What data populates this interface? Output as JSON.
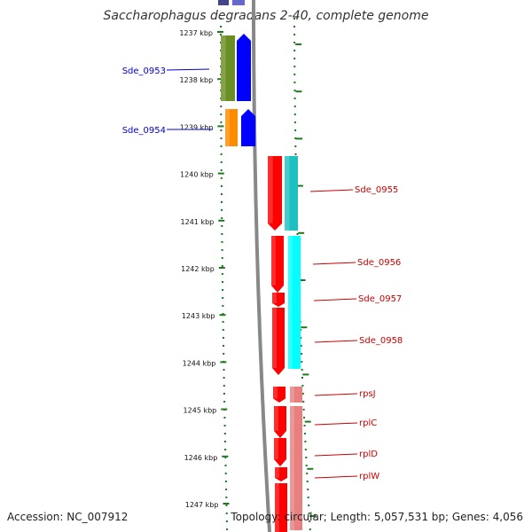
{
  "title": "Saccharophagus degradans 2-40, complete genome",
  "accession": "Accession: NC_007912",
  "topology": "Topology: circular; Length: 5,057,531 bp; Genes: 4,056",
  "ticks": [
    "1237 kbp",
    "1238 kbp",
    "1239 kbp",
    "1240 kbp",
    "1241 kbp",
    "1242 kbp",
    "1243 kbp",
    "1244 kbp",
    "1245 kbp",
    "1246 kbp",
    "1247 kbp"
  ],
  "colors": {
    "tick": "#1f7a1f",
    "left_label": "#0000cc",
    "right_label": "#cc0000",
    "backbone": "#888888",
    "olive": "#6b8e23",
    "blue": "#0000ff",
    "orange": "#ff8c00",
    "red": "#ff0000",
    "teal": "#20c0c0",
    "cyan": "#00ffff",
    "pink": "#e88080"
  },
  "gene_labels_left": [
    "Sde_0953",
    "Sde_0954"
  ],
  "gene_labels_right": [
    "Sde_0955",
    "Sde_0956",
    "Sde_0957",
    "Sde_0958",
    "rpsJ",
    "rplC",
    "rplD",
    "rplW"
  ]
}
